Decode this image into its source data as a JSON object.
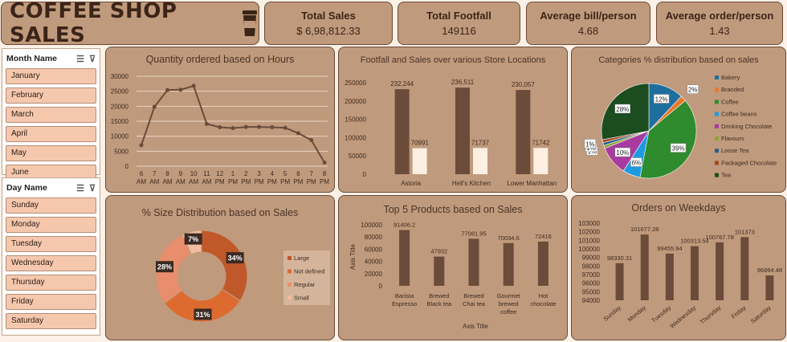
{
  "header": {
    "title": "COFFEE SHOP SALES",
    "cup_icon": "coffee-cup-icon"
  },
  "kpis": [
    {
      "label": "Total Sales",
      "value": "$ 6,98,812.33"
    },
    {
      "label": "Total Footfall",
      "value": "149116"
    },
    {
      "label": "Average bill/person",
      "value": "4.68"
    },
    {
      "label": "Average order/person",
      "value": "1.43"
    }
  ],
  "slicers": {
    "month": {
      "title": "Month Name",
      "items": [
        "January",
        "February",
        "March",
        "April",
        "May",
        "June"
      ]
    },
    "day": {
      "title": "Day Name",
      "items": [
        "Sunday",
        "Monday",
        "Tuesday",
        "Wednesday",
        "Thursday",
        "Friday",
        "Saturday"
      ]
    }
  },
  "colors": {
    "bar_dark": "#6b4b3a",
    "bar_light": "#fdf0e2",
    "line": "#6b4b3a",
    "card": "#c09a7c"
  },
  "chart_data": [
    {
      "id": "hours",
      "type": "line",
      "title": "Quantity ordered based on Hours",
      "x_top": [
        "6",
        "7",
        "8",
        "9",
        "10",
        "11",
        "12",
        "1",
        "2",
        "3",
        "4",
        "5",
        "6",
        "7",
        "8"
      ],
      "x_bottom": [
        "AM",
        "AM",
        "AM",
        "AM",
        "AM",
        "AM",
        "PM",
        "PM",
        "PM",
        "PM",
        "PM",
        "PM",
        "PM",
        "PM",
        "PM"
      ],
      "values": [
        7000,
        19800,
        25400,
        25500,
        26800,
        14100,
        13000,
        12700,
        13100,
        13100,
        13000,
        12800,
        11000,
        8700,
        1200
      ],
      "yticks": [
        0,
        5000,
        10000,
        15000,
        20000,
        25000,
        30000
      ],
      "ylim": [
        0,
        30000
      ],
      "grid": true
    },
    {
      "id": "locations",
      "type": "bar",
      "title": "Footfall and Sales over various Store Locations",
      "categories": [
        "Astoria",
        "Hell's Kitchen",
        "Lower Manhattan"
      ],
      "series": [
        {
          "values": [
            232244,
            236511,
            230057
          ],
          "labels": [
            "232,244",
            "236,511",
            "230,057"
          ]
        },
        {
          "values": [
            70991,
            71737,
            71742
          ],
          "labels": [
            "70991",
            "71737",
            "71742"
          ]
        }
      ],
      "yticks": [
        0,
        50000,
        100000,
        150000,
        200000,
        250000
      ],
      "ylim": [
        0,
        250000
      ]
    },
    {
      "id": "categories",
      "type": "pie",
      "title": "Categories % distribution based on sales",
      "labels": [
        "Bakery",
        "Branded",
        "Coffee",
        "Coffee beans",
        "Drinking Chocolate",
        "Flavours",
        "Loose Tea",
        "Packaged Chocolate",
        "Tea"
      ],
      "values": [
        12,
        2,
        39,
        6,
        10,
        1,
        1,
        1,
        28
      ],
      "value_labels": [
        "12%",
        "2%",
        "39%",
        "6%",
        "10%",
        "1%",
        "1%",
        "1%",
        "28%"
      ],
      "colors": [
        "#1f6f9e",
        "#e8782a",
        "#2e8b2e",
        "#1e9be0",
        "#a83aa0",
        "#8aa63a",
        "#2b5f86",
        "#a8461f",
        "#1b4d20"
      ],
      "legend": "right"
    },
    {
      "id": "sizes",
      "type": "pie",
      "title": "% Size Distribution based on Sales",
      "labels": [
        "Large",
        "Not defined",
        "Regular",
        "Small"
      ],
      "values": [
        34,
        31,
        28,
        7
      ],
      "value_labels": [
        "34%",
        "31%",
        "28%",
        "7%"
      ],
      "colors": [
        "#c0582a",
        "#dd6b30",
        "#e88e6c",
        "#f2bca0"
      ],
      "legend": "right"
    },
    {
      "id": "products",
      "type": "bar",
      "title": "Top 5 Products based on Sales",
      "categories": [
        [
          "Barista",
          "Espresso"
        ],
        [
          "Brewed",
          "Black tea"
        ],
        [
          "Brewed",
          "Chai tea"
        ],
        [
          "Gourmet",
          "brewed",
          "coffee"
        ],
        [
          "Hot",
          "chocolate"
        ]
      ],
      "values": [
        91406.2,
        47932,
        77081.95,
        70034.6,
        72416
      ],
      "value_labels": [
        "91406.2",
        "47932",
        "77081.95",
        "70034.6",
        "72416"
      ],
      "yticks": [
        0,
        20000,
        40000,
        60000,
        80000,
        100000
      ],
      "ylim": [
        0,
        100000
      ],
      "xlabel": "Axis Title",
      "ylabel": "Axis Title"
    },
    {
      "id": "weekdays",
      "type": "bar",
      "title": "Orders on Weekdays",
      "categories": [
        "Sunday",
        "Monday",
        "Tuesday",
        "Wednesday",
        "Thursday",
        "Friday",
        "Saturday"
      ],
      "values": [
        98330.31,
        101677.28,
        99455.94,
        100313.54,
        100767.78,
        101373,
        96894.48
      ],
      "value_labels": [
        "98330.31",
        "101677.28",
        "99455.94",
        "100313.54",
        "100767.78",
        "101373",
        "96894.48"
      ],
      "yticks": [
        94000,
        95000,
        96000,
        97000,
        98000,
        99000,
        100000,
        101000,
        102000,
        103000
      ],
      "ylim": [
        94000,
        103000
      ]
    }
  ]
}
